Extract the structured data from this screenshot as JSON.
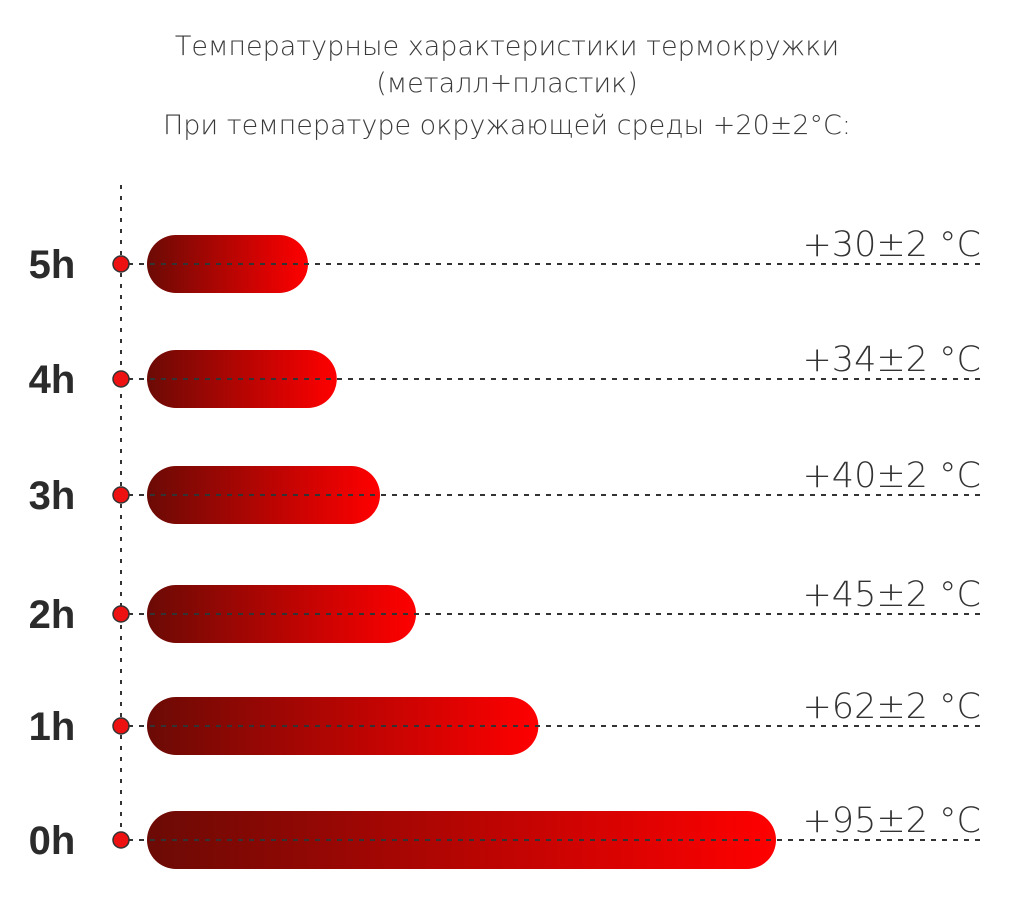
{
  "chart_data": {
    "type": "bar",
    "orientation": "horizontal",
    "title": [
      "Температурные характеристики термокружки",
      "(металл+пластик)",
      "При температуре окружающей среды +20±2°С:"
    ],
    "categories": [
      "5h",
      "4h",
      "3h",
      "2h",
      "1h",
      "0h"
    ],
    "values": [
      30,
      34,
      40,
      45,
      62,
      95
    ],
    "value_labels": [
      "+30±2 °C",
      "+34±2 °C",
      "+40±2 °C",
      "+45±2 °C",
      "+62±2 °C",
      "+95±2 °C"
    ],
    "unit": "°C",
    "grid": false,
    "legend": "none",
    "colors": {
      "bar_start": "#6b0a05",
      "bar_end": "#ff0000",
      "marker": "#ee1111",
      "text": "#2b2b2b"
    }
  }
}
